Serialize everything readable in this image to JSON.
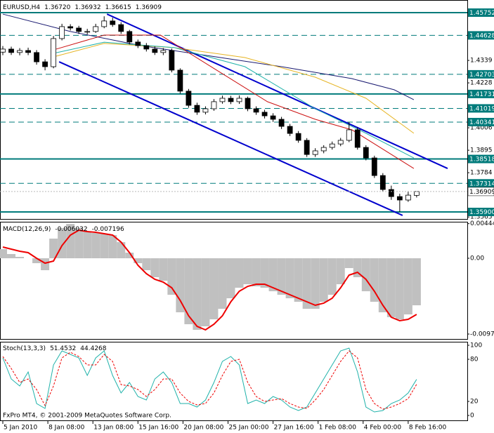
{
  "chart_data": [
    {
      "type": "candlestick",
      "title": "EURUSD,H4",
      "last_bar_labels": [
        "1.36720",
        "1.36932",
        "1.36615",
        "1.36909"
      ],
      "xlim": [
        -1,
        165
      ],
      "xticks": [
        {
          "value": 0,
          "label": "5 Jan 2010"
        },
        {
          "value": 16,
          "label": "8 Jan 08:00"
        },
        {
          "value": 32,
          "label": "13 Jan 08:00"
        },
        {
          "value": 48,
          "label": "15 Jan 16:00"
        },
        {
          "value": 64,
          "label": "20 Jan 08:00"
        },
        {
          "value": 80,
          "label": "25 Jan 00:00"
        },
        {
          "value": 96,
          "label": "27 Jan 16:00"
        },
        {
          "value": 112,
          "label": "1 Feb 08:00"
        },
        {
          "value": 128,
          "label": "4 Feb 00:00"
        },
        {
          "value": 144,
          "label": "8 Feb 16:00"
        }
      ],
      "ylim": [
        1.35519,
        1.46376
      ],
      "yticks": [
        1.4339,
        1.4228,
        1.4006,
        1.3895,
        1.3784,
        1.3565
      ],
      "x": [
        0,
        3,
        6,
        9,
        12,
        15,
        18,
        21,
        24,
        27,
        30,
        33,
        36,
        39,
        42,
        45,
        48,
        51,
        54,
        57,
        60,
        63,
        66,
        69,
        72,
        75,
        78,
        81,
        84,
        87,
        90,
        93,
        96,
        99,
        102,
        105,
        108,
        111,
        114,
        117,
        120,
        123,
        126,
        129,
        132,
        135,
        138,
        141,
        144,
        147
      ],
      "open": [
        1.438,
        1.4395,
        1.4378,
        1.4388,
        1.4378,
        1.4332,
        1.4308,
        1.4447,
        1.4506,
        1.4499,
        1.4482,
        1.4482,
        1.4506,
        1.4534,
        1.4516,
        1.4482,
        1.443,
        1.4412,
        1.4395,
        1.4378,
        1.4388,
        1.4291,
        1.4187,
        1.4117,
        1.4083,
        1.41,
        1.4135,
        1.4152,
        1.4135,
        1.4152,
        1.41,
        1.4083,
        1.4065,
        1.4048,
        1.4013,
        1.3978,
        1.3944,
        1.3874,
        1.3892,
        1.3909,
        1.3926,
        1.3944,
        1.3996,
        1.3909,
        1.3857,
        1.377,
        1.3701,
        1.3666,
        1.3649,
        1.3672
      ],
      "high": [
        1.441,
        1.4407,
        1.44,
        1.4402,
        1.439,
        1.4345,
        1.446,
        1.452,
        1.4518,
        1.451,
        1.4495,
        1.452,
        1.4557,
        1.455,
        1.4528,
        1.449,
        1.4442,
        1.4425,
        1.4408,
        1.44,
        1.4398,
        1.43,
        1.4198,
        1.413,
        1.4112,
        1.4148,
        1.4165,
        1.4164,
        1.4166,
        1.416,
        1.4112,
        1.4095,
        1.4078,
        1.406,
        1.4025,
        1.399,
        1.3955,
        1.3905,
        1.392,
        1.3938,
        1.3956,
        1.4034,
        1.4008,
        1.392,
        1.3868,
        1.3782,
        1.372,
        1.368,
        1.369,
        1.36932
      ],
      "low": [
        1.4365,
        1.4366,
        1.4364,
        1.4365,
        1.4318,
        1.429,
        1.43,
        1.4438,
        1.4487,
        1.447,
        1.4468,
        1.4475,
        1.4498,
        1.4505,
        1.447,
        1.4418,
        1.44,
        1.4383,
        1.4366,
        1.4365,
        1.428,
        1.4175,
        1.4105,
        1.407,
        1.4072,
        1.409,
        1.4125,
        1.4123,
        1.4124,
        1.4088,
        1.407,
        1.4052,
        1.4035,
        1.4,
        1.3965,
        1.3932,
        1.3862,
        1.3862,
        1.388,
        1.3898,
        1.3915,
        1.3935,
        1.3898,
        1.3845,
        1.3758,
        1.369,
        1.365,
        1.359,
        1.364,
        1.36615
      ],
      "close": [
        1.4395,
        1.4378,
        1.4388,
        1.4378,
        1.4332,
        1.4308,
        1.4447,
        1.4506,
        1.4499,
        1.4482,
        1.4482,
        1.4506,
        1.4534,
        1.4516,
        1.4482,
        1.443,
        1.4412,
        1.4395,
        1.4378,
        1.4388,
        1.4291,
        1.4187,
        1.4117,
        1.4083,
        1.41,
        1.4135,
        1.4152,
        1.4135,
        1.4152,
        1.41,
        1.4083,
        1.4065,
        1.4048,
        1.4013,
        1.3978,
        1.3944,
        1.3874,
        1.3892,
        1.3909,
        1.3926,
        1.3944,
        1.3996,
        1.3909,
        1.3857,
        1.377,
        1.3701,
        1.3666,
        1.3649,
        1.3673,
        1.36909
      ],
      "color_up": "#ffffff",
      "color_down": "#000000",
      "level_color": "#007b7b",
      "levels": [
        {
          "value": 1.45752,
          "style": "solid"
        },
        {
          "value": 1.44628,
          "style": "dashed"
        },
        {
          "value": 1.42703,
          "style": "dashed"
        },
        {
          "value": 1.41731,
          "style": "solid"
        },
        {
          "value": 1.41019,
          "style": "dashed"
        },
        {
          "value": 1.40341,
          "style": "dashed"
        },
        {
          "value": 1.38518,
          "style": "solid"
        },
        {
          "value": 1.37314,
          "style": "dashed"
        },
        {
          "value": 1.359,
          "label": "1.35900",
          "style": "solid"
        }
      ],
      "channel_color": "#0000cd",
      "channel": [
        {
          "x": [
            37,
            158
          ],
          "values": [
            1.4568,
            1.3805
          ]
        },
        {
          "x": [
            20,
            142
          ],
          "values": [
            1.4332,
            1.3573
          ]
        }
      ],
      "moving_averages": [
        {
          "color": "#191970",
          "x": [
            0,
            24,
            49,
            74,
            99,
            124,
            139,
            146
          ],
          "values": [
            1.4568,
            1.4482,
            1.4412,
            1.436,
            1.4308,
            1.4249,
            1.4194,
            1.4145
          ]
        },
        {
          "color": "#e6b422",
          "x": [
            19,
            36,
            61,
            86,
            111,
            129,
            146
          ],
          "values": [
            1.436,
            1.4423,
            1.4402,
            1.4353,
            1.4256,
            1.4152,
            1.3979
          ]
        },
        {
          "color": "#20b2aa",
          "x": [
            19,
            36,
            61,
            86,
            111,
            129,
            146
          ],
          "values": [
            1.4377,
            1.4429,
            1.4402,
            1.4308,
            1.41,
            1.3979,
            1.3857
          ]
        },
        {
          "color": "#cc1111",
          "x": [
            19,
            36,
            56,
            74,
            94,
            111,
            124,
            146
          ],
          "values": [
            1.4395,
            1.4464,
            1.4464,
            1.4308,
            1.4135,
            1.4048,
            1.3996,
            1.3805
          ]
        }
      ]
    },
    {
      "type": "macd",
      "title": "MACD(12,26,9)",
      "xlim": [
        -1,
        165
      ],
      "ylim": [
        -0.01044,
        0.00468
      ],
      "yticks": [
        0.00444,
        {
          "value": 0,
          "label": "0.00"
        },
        -0.00972
      ],
      "x": [
        0,
        3,
        6,
        9,
        12,
        15,
        18,
        21,
        24,
        27,
        30,
        33,
        36,
        39,
        42,
        45,
        48,
        51,
        54,
        57,
        60,
        63,
        66,
        69,
        72,
        75,
        78,
        81,
        84,
        87,
        90,
        93,
        96,
        99,
        102,
        105,
        108,
        111,
        114,
        117,
        120,
        123,
        126,
        129,
        132,
        135,
        138,
        141,
        144,
        147
      ],
      "histogram_color": "#c0c0c0",
      "signal_color": "#ee0000",
      "histogram": [
        0.00117,
        0.00054,
        0.00018,
        0,
        -0.00063,
        -0.00153,
        0.00252,
        0.00387,
        0.0044,
        0.00387,
        0.00342,
        0.00324,
        0.00315,
        0.00297,
        0.00207,
        0.00072,
        -0.00063,
        -0.00153,
        -0.00243,
        -0.00288,
        -0.00468,
        -0.00693,
        -0.00846,
        -0.00918,
        -0.00873,
        -0.00783,
        -0.00648,
        -0.00513,
        -0.00378,
        -0.00333,
        -0.0036,
        -0.00378,
        -0.00423,
        -0.00468,
        -0.00513,
        -0.00558,
        -0.00648,
        -0.00648,
        -0.00558,
        -0.00468,
        -0.00333,
        -0.00126,
        -0.00243,
        -0.00423,
        -0.00558,
        -0.00693,
        -0.00756,
        -0.00783,
        -0.0072,
        -0.006032
      ],
      "signal": [
        0.00144,
        0.00117,
        0.0009,
        0.00072,
        0,
        -0.00063,
        -0.00036,
        0.00162,
        0.00297,
        0.0036,
        0.00342,
        0.00333,
        0.00315,
        0.00297,
        0.00207,
        0.00072,
        -0.0009,
        -0.00198,
        -0.0027,
        -0.00306,
        -0.00378,
        -0.0054,
        -0.00738,
        -0.00873,
        -0.00918,
        -0.00846,
        -0.00738,
        -0.00558,
        -0.00423,
        -0.0036,
        -0.00333,
        -0.00333,
        -0.00378,
        -0.00423,
        -0.00468,
        -0.00513,
        -0.00558,
        -0.00603,
        -0.00576,
        -0.00513,
        -0.00378,
        -0.00216,
        -0.0018,
        -0.0027,
        -0.00423,
        -0.00603,
        -0.00756,
        -0.00801,
        -0.00783,
        -0.007196
      ]
    },
    {
      "type": "stochastic",
      "title": "Stoch(13,3,3)",
      "xlim": [
        -1,
        165
      ],
      "ylim": [
        -8,
        105
      ],
      "yticks": [
        100,
        80,
        20,
        0
      ],
      "x": [
        0,
        3,
        6,
        9,
        12,
        15,
        18,
        21,
        24,
        27,
        30,
        33,
        36,
        39,
        42,
        45,
        48,
        51,
        54,
        57,
        60,
        63,
        66,
        69,
        72,
        75,
        78,
        81,
        84,
        87,
        90,
        93,
        96,
        99,
        102,
        105,
        108,
        111,
        114,
        117,
        120,
        123,
        126,
        129,
        132,
        135,
        138,
        141,
        144,
        147
      ],
      "main_color": "#20b2aa",
      "signal_color": "#ee0000",
      "main": [
        82,
        52,
        42,
        62,
        17,
        10,
        72,
        92,
        87,
        82,
        57,
        82,
        92,
        57,
        32,
        47,
        27,
        22,
        52,
        62,
        47,
        17,
        17,
        12,
        22,
        47,
        77,
        84,
        72,
        17,
        22,
        17,
        27,
        22,
        12,
        7,
        12,
        32,
        52,
        72,
        92,
        96,
        62,
        12,
        5,
        7,
        17,
        22,
        32,
        51.4532
      ],
      "signal": [
        84,
        67,
        47,
        52,
        37,
        14,
        42,
        82,
        90,
        84,
        72,
        72,
        87,
        77,
        44,
        42,
        37,
        27,
        37,
        52,
        52,
        32,
        20,
        15,
        17,
        32,
        57,
        77,
        80,
        47,
        27,
        20,
        22,
        24,
        17,
        12,
        10,
        22,
        37,
        57,
        77,
        92,
        82,
        37,
        17,
        9,
        12,
        17,
        24,
        44.4268
      ],
      "watermark": "FxPro MT4, © 2001-2009 MetaQuotes Software Corp."
    }
  ]
}
